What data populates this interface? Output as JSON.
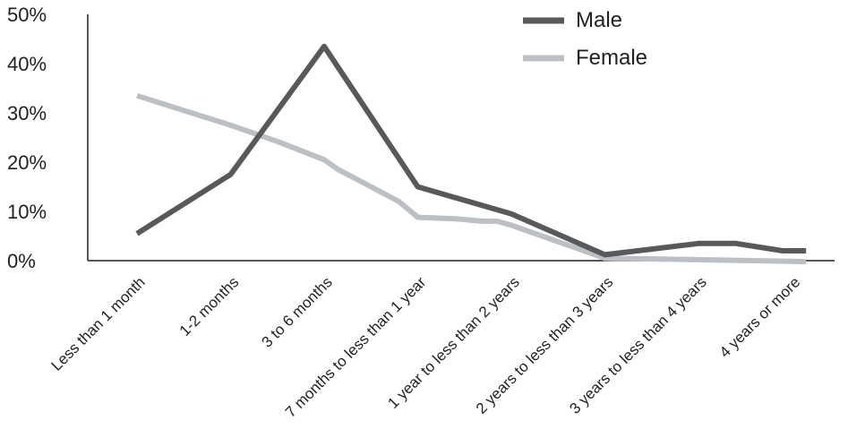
{
  "chart_data": {
    "type": "line",
    "title": "",
    "xlabel": "",
    "ylabel": "",
    "categories": [
      "Less than 1 month",
      "1-2 months",
      "3 to 6 months",
      "7 months to less than 1 year",
      "1 year to less than 2 years",
      "2 years to less than 3 years",
      "3 years to less than 4 years",
      "4 years or more"
    ],
    "y_ticks": [
      "0%",
      "10%",
      "20%",
      "30%",
      "40%",
      "50%"
    ],
    "ylim": [
      0,
      50
    ],
    "grid": false,
    "legend_position": "top-right",
    "series": [
      {
        "name": "Male",
        "color": "#58595b",
        "points": [
          {
            "x": 0,
            "y": 5.5
          },
          {
            "x": 1,
            "y": 17.5
          },
          {
            "x": 2,
            "y": 43.5
          },
          {
            "x": 3,
            "y": 15.0
          },
          {
            "x": 4,
            "y": 9.5
          },
          {
            "x": 5,
            "y": 1.2
          },
          {
            "x": 6,
            "y": 3.5
          },
          {
            "x": 6.4,
            "y": 3.5
          },
          {
            "x": 6.9,
            "y": 2.0
          },
          {
            "x": 7.15,
            "y": 2.0
          }
        ]
      },
      {
        "name": "Female",
        "color": "#bcc0c4",
        "points": [
          {
            "x": 0,
            "y": 33.5
          },
          {
            "x": 1,
            "y": 27.5
          },
          {
            "x": 1.5,
            "y": 24.2
          },
          {
            "x": 2,
            "y": 20.5
          },
          {
            "x": 2.15,
            "y": 18.5
          },
          {
            "x": 2.8,
            "y": 12.0
          },
          {
            "x": 3,
            "y": 8.8
          },
          {
            "x": 3.4,
            "y": 8.5
          },
          {
            "x": 3.7,
            "y": 8.0
          },
          {
            "x": 3.85,
            "y": 8.0
          },
          {
            "x": 4,
            "y": 7.2
          },
          {
            "x": 5,
            "y": 0.5
          },
          {
            "x": 6,
            "y": 0.2
          },
          {
            "x": 7.15,
            "y": -0.2
          }
        ]
      }
    ]
  }
}
